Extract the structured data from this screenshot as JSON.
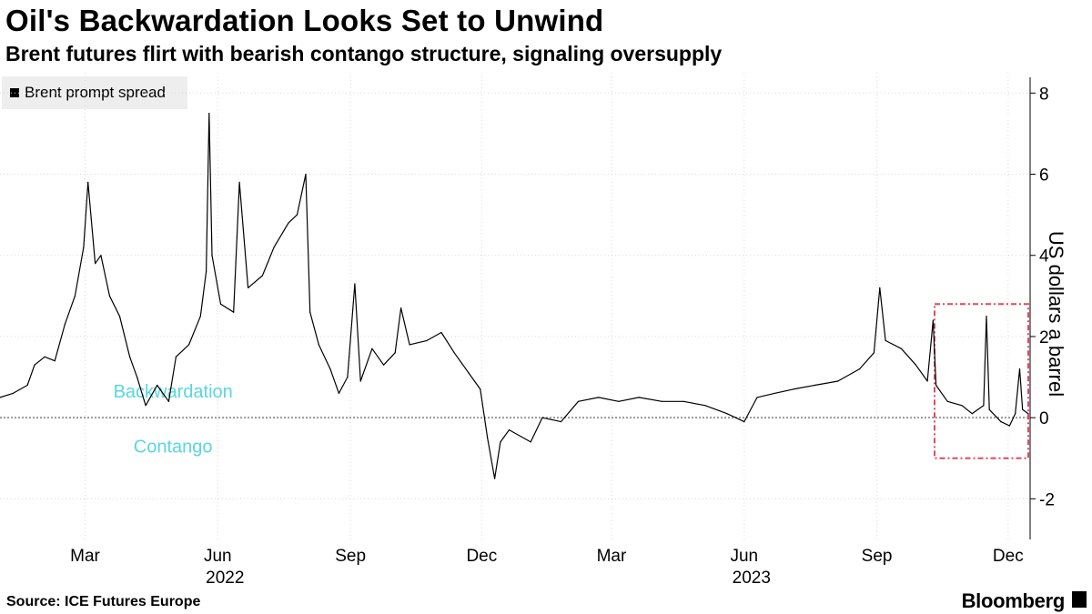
{
  "title": "Oil's Backwardation Looks Set to Unwind",
  "subtitle": "Brent futures flirt with bearish contango structure, signaling oversupply",
  "source": "Source: ICE Futures Europe",
  "brand": "Bloomberg",
  "colors": {
    "line": "#000000",
    "zero_line": "#999999",
    "annotation": "#5ad6e0",
    "highlight_box": "#e2475f"
  },
  "chart_data": {
    "type": "line",
    "title": "Oil's Backwardation Looks Set to Unwind",
    "subtitle": "Brent futures flirt with bearish contango structure, signaling oversupply",
    "ylabel": "US dollars a barrel",
    "ylim": [
      -3,
      8.5
    ],
    "y_ticks": [
      8,
      6,
      4,
      2,
      0,
      -2
    ],
    "y_tick_labels": [
      "8",
      "6",
      "4",
      "2",
      "0",
      "-2"
    ],
    "x_range": [
      "2022-01-01",
      "2023-12-15"
    ],
    "x_ticks": [
      {
        "date": "2022-03-01",
        "label": "Mar"
      },
      {
        "date": "2022-06-01",
        "label": "Jun"
      },
      {
        "date": "2022-09-01",
        "label": "Sep"
      },
      {
        "date": "2022-12-01",
        "label": "Dec"
      },
      {
        "date": "2023-03-01",
        "label": "Mar"
      },
      {
        "date": "2023-06-01",
        "label": "Jun"
      },
      {
        "date": "2023-09-01",
        "label": "Sep"
      },
      {
        "date": "2023-12-01",
        "label": "Dec"
      }
    ],
    "year_labels": [
      {
        "date": "2022-06-01",
        "label": "2022"
      },
      {
        "date": "2023-06-01",
        "label": "2023"
      }
    ],
    "annotations": [
      {
        "text": "Backwardation",
        "date": "2022-05-01",
        "y": 0.65
      },
      {
        "text": "Contango",
        "date": "2022-05-01",
        "y": -0.7
      }
    ],
    "highlight_box": {
      "x_start": "2023-10-11",
      "x_end": "2023-12-15",
      "y_min": -1,
      "y_max": 2.8
    },
    "grid": true,
    "legend_position": "top-left",
    "series": [
      {
        "name": "Brent prompt spread",
        "points": [
          [
            "2022-01-01",
            0.5
          ],
          [
            "2022-01-10",
            0.6
          ],
          [
            "2022-01-20",
            0.8
          ],
          [
            "2022-01-25",
            1.3
          ],
          [
            "2022-02-01",
            1.5
          ],
          [
            "2022-02-08",
            1.4
          ],
          [
            "2022-02-15",
            2.3
          ],
          [
            "2022-02-22",
            3.0
          ],
          [
            "2022-02-28",
            4.2
          ],
          [
            "2022-03-03",
            5.8
          ],
          [
            "2022-03-08",
            3.8
          ],
          [
            "2022-03-12",
            4.0
          ],
          [
            "2022-03-18",
            3.0
          ],
          [
            "2022-03-25",
            2.5
          ],
          [
            "2022-04-01",
            1.5
          ],
          [
            "2022-04-06",
            1.0
          ],
          [
            "2022-04-12",
            0.3
          ],
          [
            "2022-04-20",
            0.8
          ],
          [
            "2022-04-28",
            0.4
          ],
          [
            "2022-05-03",
            1.5
          ],
          [
            "2022-05-12",
            1.8
          ],
          [
            "2022-05-20",
            2.5
          ],
          [
            "2022-05-24",
            3.6
          ],
          [
            "2022-05-26",
            7.5
          ],
          [
            "2022-05-28",
            4.0
          ],
          [
            "2022-06-03",
            2.8
          ],
          [
            "2022-06-12",
            2.6
          ],
          [
            "2022-06-16",
            5.8
          ],
          [
            "2022-06-22",
            3.2
          ],
          [
            "2022-07-02",
            3.5
          ],
          [
            "2022-07-10",
            4.2
          ],
          [
            "2022-07-20",
            4.8
          ],
          [
            "2022-07-26",
            5.0
          ],
          [
            "2022-08-01",
            6.0
          ],
          [
            "2022-08-04",
            2.6
          ],
          [
            "2022-08-10",
            1.8
          ],
          [
            "2022-08-18",
            1.2
          ],
          [
            "2022-08-24",
            0.6
          ],
          [
            "2022-08-30",
            1.0
          ],
          [
            "2022-09-04",
            3.3
          ],
          [
            "2022-09-08",
            0.9
          ],
          [
            "2022-09-16",
            1.7
          ],
          [
            "2022-09-24",
            1.3
          ],
          [
            "2022-10-02",
            1.6
          ],
          [
            "2022-10-06",
            2.7
          ],
          [
            "2022-10-12",
            1.8
          ],
          [
            "2022-10-24",
            1.9
          ],
          [
            "2022-11-03",
            2.1
          ],
          [
            "2022-11-12",
            1.6
          ],
          [
            "2022-11-22",
            1.1
          ],
          [
            "2022-11-30",
            0.7
          ],
          [
            "2022-12-05",
            -0.5
          ],
          [
            "2022-12-10",
            -1.5
          ],
          [
            "2022-12-14",
            -0.6
          ],
          [
            "2022-12-20",
            -0.3
          ],
          [
            "2023-01-04",
            -0.6
          ],
          [
            "2023-01-12",
            0.0
          ],
          [
            "2023-01-25",
            -0.1
          ],
          [
            "2023-02-06",
            0.4
          ],
          [
            "2023-02-20",
            0.5
          ],
          [
            "2023-03-06",
            0.4
          ],
          [
            "2023-03-20",
            0.5
          ],
          [
            "2023-04-05",
            0.4
          ],
          [
            "2023-04-20",
            0.4
          ],
          [
            "2023-05-05",
            0.3
          ],
          [
            "2023-05-20",
            0.1
          ],
          [
            "2023-06-01",
            -0.1
          ],
          [
            "2023-06-10",
            0.5
          ],
          [
            "2023-06-22",
            0.6
          ],
          [
            "2023-07-05",
            0.7
          ],
          [
            "2023-07-20",
            0.8
          ],
          [
            "2023-08-05",
            0.9
          ],
          [
            "2023-08-20",
            1.2
          ],
          [
            "2023-08-30",
            1.6
          ],
          [
            "2023-09-03",
            3.2
          ],
          [
            "2023-09-07",
            1.9
          ],
          [
            "2023-09-18",
            1.7
          ],
          [
            "2023-09-28",
            1.3
          ],
          [
            "2023-10-06",
            0.9
          ],
          [
            "2023-10-10",
            2.4
          ],
          [
            "2023-10-12",
            0.8
          ],
          [
            "2023-10-20",
            0.4
          ],
          [
            "2023-10-30",
            0.3
          ],
          [
            "2023-11-06",
            0.1
          ],
          [
            "2023-11-14",
            0.3
          ],
          [
            "2023-11-16",
            2.5
          ],
          [
            "2023-11-18",
            0.2
          ],
          [
            "2023-11-26",
            -0.1
          ],
          [
            "2023-12-02",
            -0.2
          ],
          [
            "2023-12-06",
            0.1
          ],
          [
            "2023-12-09",
            1.2
          ],
          [
            "2023-12-11",
            0.2
          ],
          [
            "2023-12-15",
            0.1
          ]
        ]
      }
    ]
  }
}
